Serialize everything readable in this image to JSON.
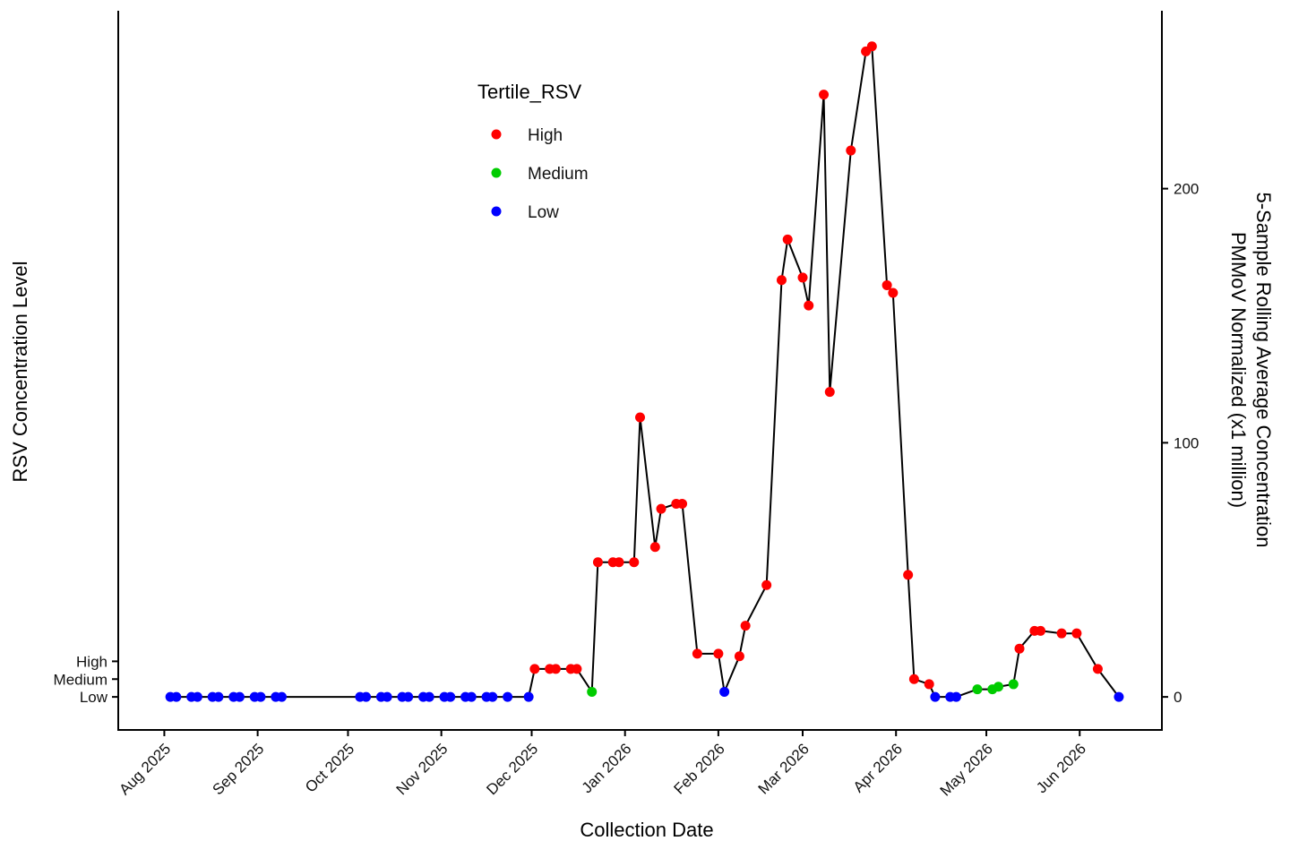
{
  "chart_data": {
    "type": "line",
    "xlabel": "Collection Date",
    "ylabel_left": "RSV Concentration Level",
    "ylabel_right_line1": "5-Sample Rolling Average Concentration",
    "ylabel_right_line2": "PMMoV Normalized (x1 million)",
    "left_ticks": [
      "High",
      "Medium",
      "Low"
    ],
    "right_ticks": [
      "0",
      "100",
      "200"
    ],
    "right_ylim": [
      -13,
      270
    ],
    "x_ticks": [
      {
        "date": "2025-08-01",
        "label": "Aug 2025"
      },
      {
        "date": "2025-09-01",
        "label": "Sep 2025"
      },
      {
        "date": "2025-10-01",
        "label": "Oct 2025"
      },
      {
        "date": "2025-11-01",
        "label": "Nov 2025"
      },
      {
        "date": "2025-12-01",
        "label": "Dec 2025"
      },
      {
        "date": "2026-01-01",
        "label": "Jan 2026"
      },
      {
        "date": "2026-02-01",
        "label": "Feb 2026"
      },
      {
        "date": "2026-03-01",
        "label": "Mar 2026"
      },
      {
        "date": "2026-04-01",
        "label": "Apr 2026"
      },
      {
        "date": "2026-05-01",
        "label": "May 2026"
      },
      {
        "date": "2026-06-01",
        "label": "Jun 2026"
      }
    ],
    "xlim": [
      "2025-07-17",
      "2026-06-28"
    ],
    "legend": {
      "title": "Tertile_RSV",
      "placement": "top-center",
      "entries": [
        {
          "label": "High",
          "color": "#ff0000"
        },
        {
          "label": "Medium",
          "color": "#00cc00"
        },
        {
          "label": "Low",
          "color": "#0000ff"
        }
      ]
    },
    "colors": {
      "High": "#ff0000",
      "Medium": "#00cc00",
      "Low": "#0000ff",
      "line": "#000000"
    },
    "points": [
      {
        "date": "2025-08-03",
        "value": 0,
        "tertile": "Low"
      },
      {
        "date": "2025-08-05",
        "value": 0,
        "tertile": "Low"
      },
      {
        "date": "2025-08-10",
        "value": 0,
        "tertile": "Low"
      },
      {
        "date": "2025-08-12",
        "value": 0,
        "tertile": "Low"
      },
      {
        "date": "2025-08-17",
        "value": 0,
        "tertile": "Low"
      },
      {
        "date": "2025-08-19",
        "value": 0,
        "tertile": "Low"
      },
      {
        "date": "2025-08-24",
        "value": 0,
        "tertile": "Low"
      },
      {
        "date": "2025-08-26",
        "value": 0,
        "tertile": "Low"
      },
      {
        "date": "2025-08-31",
        "value": 0,
        "tertile": "Low"
      },
      {
        "date": "2025-09-02",
        "value": 0,
        "tertile": "Low"
      },
      {
        "date": "2025-09-07",
        "value": 0,
        "tertile": "Low"
      },
      {
        "date": "2025-09-09",
        "value": 0,
        "tertile": "Low"
      },
      {
        "date": "2025-10-05",
        "value": 0,
        "tertile": "Low"
      },
      {
        "date": "2025-10-07",
        "value": 0,
        "tertile": "Low"
      },
      {
        "date": "2025-10-12",
        "value": 0,
        "tertile": "Low"
      },
      {
        "date": "2025-10-14",
        "value": 0,
        "tertile": "Low"
      },
      {
        "date": "2025-10-19",
        "value": 0,
        "tertile": "Low"
      },
      {
        "date": "2025-10-21",
        "value": 0,
        "tertile": "Low"
      },
      {
        "date": "2025-10-26",
        "value": 0,
        "tertile": "Low"
      },
      {
        "date": "2025-10-28",
        "value": 0,
        "tertile": "Low"
      },
      {
        "date": "2025-11-02",
        "value": 0,
        "tertile": "Low"
      },
      {
        "date": "2025-11-04",
        "value": 0,
        "tertile": "Low"
      },
      {
        "date": "2025-11-09",
        "value": 0,
        "tertile": "Low"
      },
      {
        "date": "2025-11-11",
        "value": 0,
        "tertile": "Low"
      },
      {
        "date": "2025-11-16",
        "value": 0,
        "tertile": "Low"
      },
      {
        "date": "2025-11-18",
        "value": 0,
        "tertile": "Low"
      },
      {
        "date": "2025-11-23",
        "value": 0,
        "tertile": "Low"
      },
      {
        "date": "2025-11-30",
        "value": 0,
        "tertile": "Low"
      },
      {
        "date": "2025-12-02",
        "value": 11,
        "tertile": "High"
      },
      {
        "date": "2025-12-07",
        "value": 11,
        "tertile": "High"
      },
      {
        "date": "2025-12-09",
        "value": 11,
        "tertile": "High"
      },
      {
        "date": "2025-12-14",
        "value": 11,
        "tertile": "High"
      },
      {
        "date": "2025-12-16",
        "value": 11,
        "tertile": "High"
      },
      {
        "date": "2025-12-21",
        "value": 2,
        "tertile": "Medium"
      },
      {
        "date": "2025-12-23",
        "value": 53,
        "tertile": "High"
      },
      {
        "date": "2025-12-28",
        "value": 53,
        "tertile": "High"
      },
      {
        "date": "2025-12-30",
        "value": 53,
        "tertile": "High"
      },
      {
        "date": "2026-01-04",
        "value": 53,
        "tertile": "High"
      },
      {
        "date": "2026-01-06",
        "value": 110,
        "tertile": "High"
      },
      {
        "date": "2026-01-11",
        "value": 59,
        "tertile": "High"
      },
      {
        "date": "2026-01-13",
        "value": 74,
        "tertile": "High"
      },
      {
        "date": "2026-01-18",
        "value": 76,
        "tertile": "High"
      },
      {
        "date": "2026-01-20",
        "value": 76,
        "tertile": "High"
      },
      {
        "date": "2026-01-25",
        "value": 17,
        "tertile": "High"
      },
      {
        "date": "2026-02-01",
        "value": 17,
        "tertile": "High"
      },
      {
        "date": "2026-02-03",
        "value": 2,
        "tertile": "Low"
      },
      {
        "date": "2026-02-08",
        "value": 16,
        "tertile": "High"
      },
      {
        "date": "2026-02-10",
        "value": 28,
        "tertile": "High"
      },
      {
        "date": "2026-02-17",
        "value": 44,
        "tertile": "High"
      },
      {
        "date": "2026-02-22",
        "value": 164,
        "tertile": "High"
      },
      {
        "date": "2026-02-24",
        "value": 180,
        "tertile": "High"
      },
      {
        "date": "2026-03-01",
        "value": 165,
        "tertile": "High"
      },
      {
        "date": "2026-03-03",
        "value": 154,
        "tertile": "High"
      },
      {
        "date": "2026-03-08",
        "value": 237,
        "tertile": "High"
      },
      {
        "date": "2026-03-10",
        "value": 120,
        "tertile": "High"
      },
      {
        "date": "2026-03-17",
        "value": 215,
        "tertile": "High"
      },
      {
        "date": "2026-03-22",
        "value": 254,
        "tertile": "High"
      },
      {
        "date": "2026-03-24",
        "value": 256,
        "tertile": "High"
      },
      {
        "date": "2026-03-29",
        "value": 162,
        "tertile": "High"
      },
      {
        "date": "2026-03-31",
        "value": 159,
        "tertile": "High"
      },
      {
        "date": "2026-04-05",
        "value": 48,
        "tertile": "High"
      },
      {
        "date": "2026-04-07",
        "value": 7,
        "tertile": "High"
      },
      {
        "date": "2026-04-12",
        "value": 5,
        "tertile": "High"
      },
      {
        "date": "2026-04-14",
        "value": 0,
        "tertile": "Low"
      },
      {
        "date": "2026-04-19",
        "value": 0,
        "tertile": "Low"
      },
      {
        "date": "2026-04-21",
        "value": 0,
        "tertile": "Low"
      },
      {
        "date": "2026-04-28",
        "value": 3,
        "tertile": "Medium"
      },
      {
        "date": "2026-05-03",
        "value": 3,
        "tertile": "Medium"
      },
      {
        "date": "2026-05-05",
        "value": 4,
        "tertile": "Medium"
      },
      {
        "date": "2026-05-10",
        "value": 5,
        "tertile": "Medium"
      },
      {
        "date": "2026-05-12",
        "value": 19,
        "tertile": "High"
      },
      {
        "date": "2026-05-17",
        "value": 26,
        "tertile": "High"
      },
      {
        "date": "2026-05-19",
        "value": 26,
        "tertile": "High"
      },
      {
        "date": "2026-05-26",
        "value": 25,
        "tertile": "High"
      },
      {
        "date": "2026-05-31",
        "value": 25,
        "tertile": "High"
      },
      {
        "date": "2026-06-07",
        "value": 11,
        "tertile": "High"
      },
      {
        "date": "2026-06-14",
        "value": 0,
        "tertile": "Low"
      }
    ]
  }
}
